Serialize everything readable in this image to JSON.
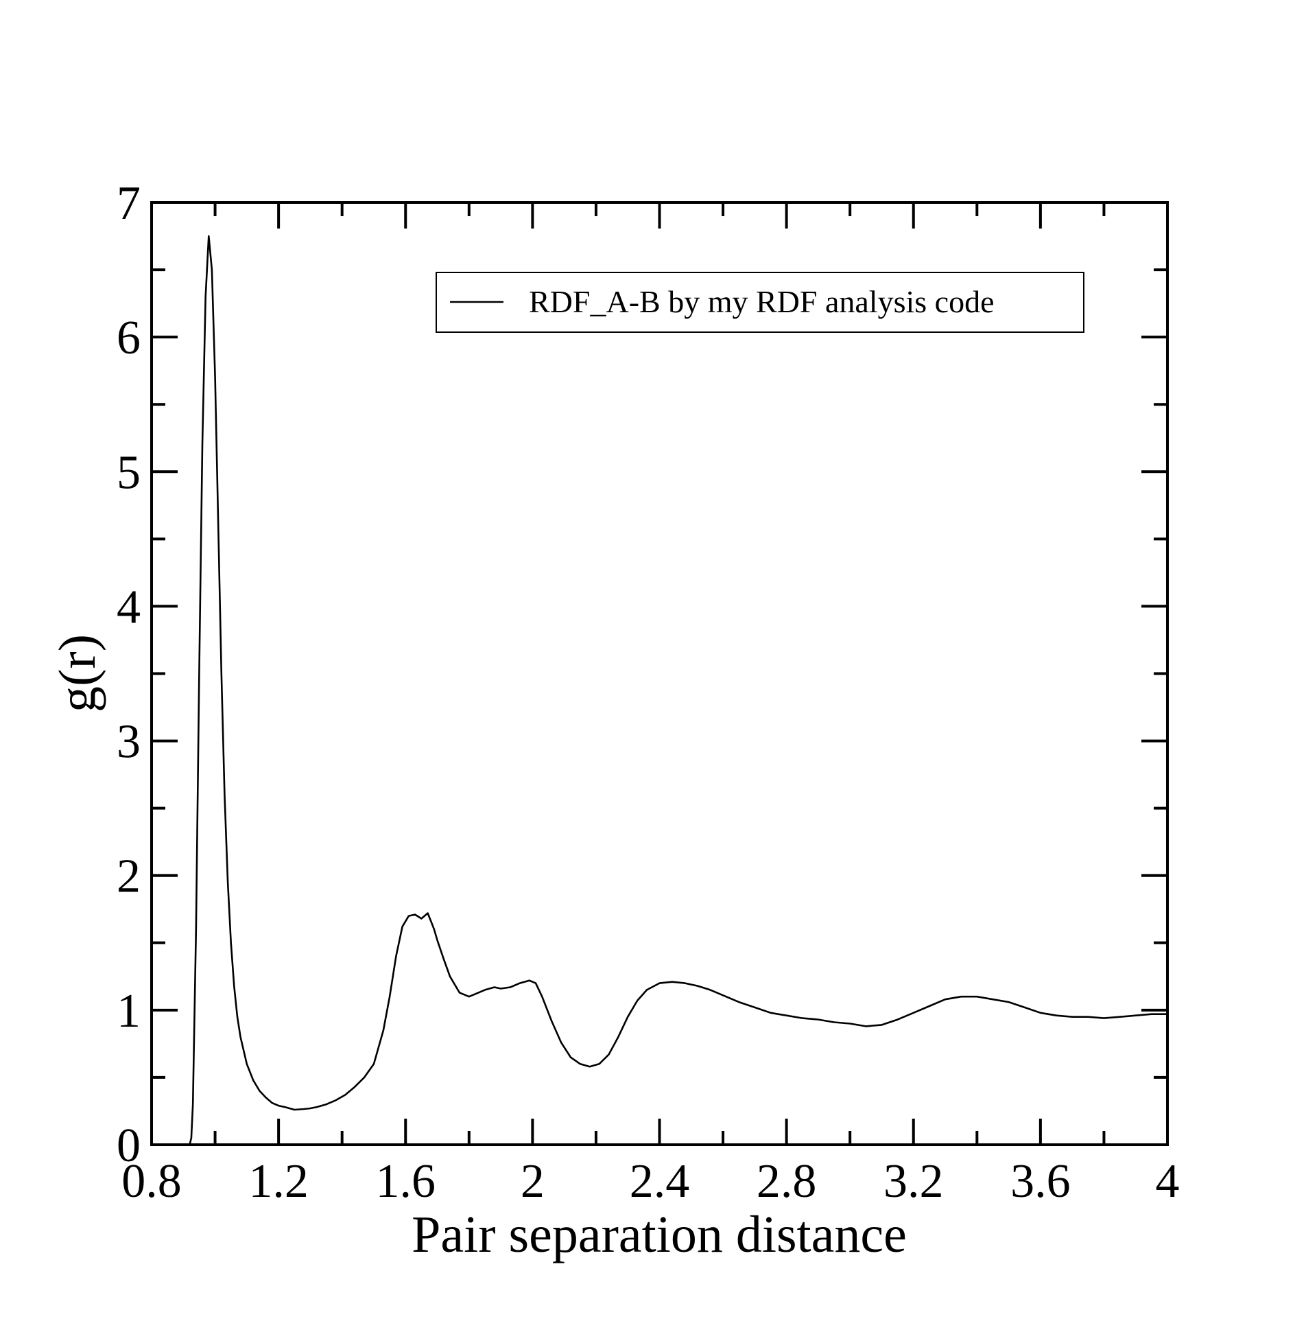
{
  "chart_data": {
    "type": "line",
    "title": "",
    "xlabel": "Pair separation distance",
    "ylabel": "g(r)",
    "xlim": [
      0.8,
      4
    ],
    "ylim": [
      0,
      7
    ],
    "x_ticks": [
      "0.8",
      "1.2",
      "1.6",
      "2",
      "2.4",
      "2.8",
      "3.2",
      "3.6",
      "4"
    ],
    "y_ticks": [
      "0",
      "1",
      "2",
      "3",
      "4",
      "5",
      "6",
      "7"
    ],
    "grid": false,
    "legend_position": "top-right",
    "series": [
      {
        "name": "RDF_A-B by my RDF analysis code",
        "color": "#000000",
        "x": [
          0.92,
          0.925,
          0.93,
          0.94,
          0.95,
          0.96,
          0.97,
          0.98,
          0.99,
          1.0,
          1.01,
          1.02,
          1.03,
          1.04,
          1.05,
          1.06,
          1.07,
          1.08,
          1.09,
          1.1,
          1.12,
          1.14,
          1.16,
          1.18,
          1.2,
          1.22,
          1.25,
          1.28,
          1.3,
          1.32,
          1.35,
          1.38,
          1.41,
          1.44,
          1.47,
          1.5,
          1.53,
          1.55,
          1.57,
          1.59,
          1.61,
          1.63,
          1.65,
          1.67,
          1.68,
          1.69,
          1.7,
          1.72,
          1.74,
          1.77,
          1.8,
          1.82,
          1.85,
          1.88,
          1.9,
          1.93,
          1.96,
          1.99,
          2.01,
          2.03,
          2.06,
          2.09,
          2.12,
          2.15,
          2.18,
          2.21,
          2.24,
          2.27,
          2.3,
          2.33,
          2.36,
          2.4,
          2.44,
          2.48,
          2.52,
          2.56,
          2.6,
          2.65,
          2.7,
          2.75,
          2.8,
          2.85,
          2.9,
          2.95,
          3.0,
          3.05,
          3.1,
          3.15,
          3.2,
          3.25,
          3.3,
          3.35,
          3.4,
          3.45,
          3.5,
          3.55,
          3.6,
          3.65,
          3.7,
          3.75,
          3.8,
          3.85,
          3.9,
          3.95,
          4.0
        ],
        "y": [
          0.0,
          0.05,
          0.3,
          1.6,
          3.5,
          5.2,
          6.3,
          6.75,
          6.5,
          5.7,
          4.6,
          3.5,
          2.6,
          1.95,
          1.5,
          1.18,
          0.95,
          0.8,
          0.7,
          0.6,
          0.48,
          0.4,
          0.35,
          0.31,
          0.29,
          0.28,
          0.26,
          0.265,
          0.27,
          0.28,
          0.3,
          0.33,
          0.37,
          0.43,
          0.5,
          0.6,
          0.85,
          1.1,
          1.4,
          1.62,
          1.7,
          1.71,
          1.68,
          1.72,
          1.66,
          1.6,
          1.52,
          1.38,
          1.25,
          1.13,
          1.1,
          1.12,
          1.15,
          1.17,
          1.16,
          1.17,
          1.2,
          1.22,
          1.2,
          1.1,
          0.92,
          0.76,
          0.65,
          0.6,
          0.58,
          0.6,
          0.67,
          0.8,
          0.95,
          1.07,
          1.15,
          1.2,
          1.21,
          1.2,
          1.18,
          1.15,
          1.11,
          1.06,
          1.02,
          0.98,
          0.96,
          0.94,
          0.93,
          0.91,
          0.9,
          0.88,
          0.89,
          0.93,
          0.98,
          1.03,
          1.08,
          1.1,
          1.1,
          1.08,
          1.06,
          1.02,
          0.98,
          0.96,
          0.95,
          0.95,
          0.94,
          0.95,
          0.96,
          0.97,
          0.97
        ]
      }
    ]
  }
}
